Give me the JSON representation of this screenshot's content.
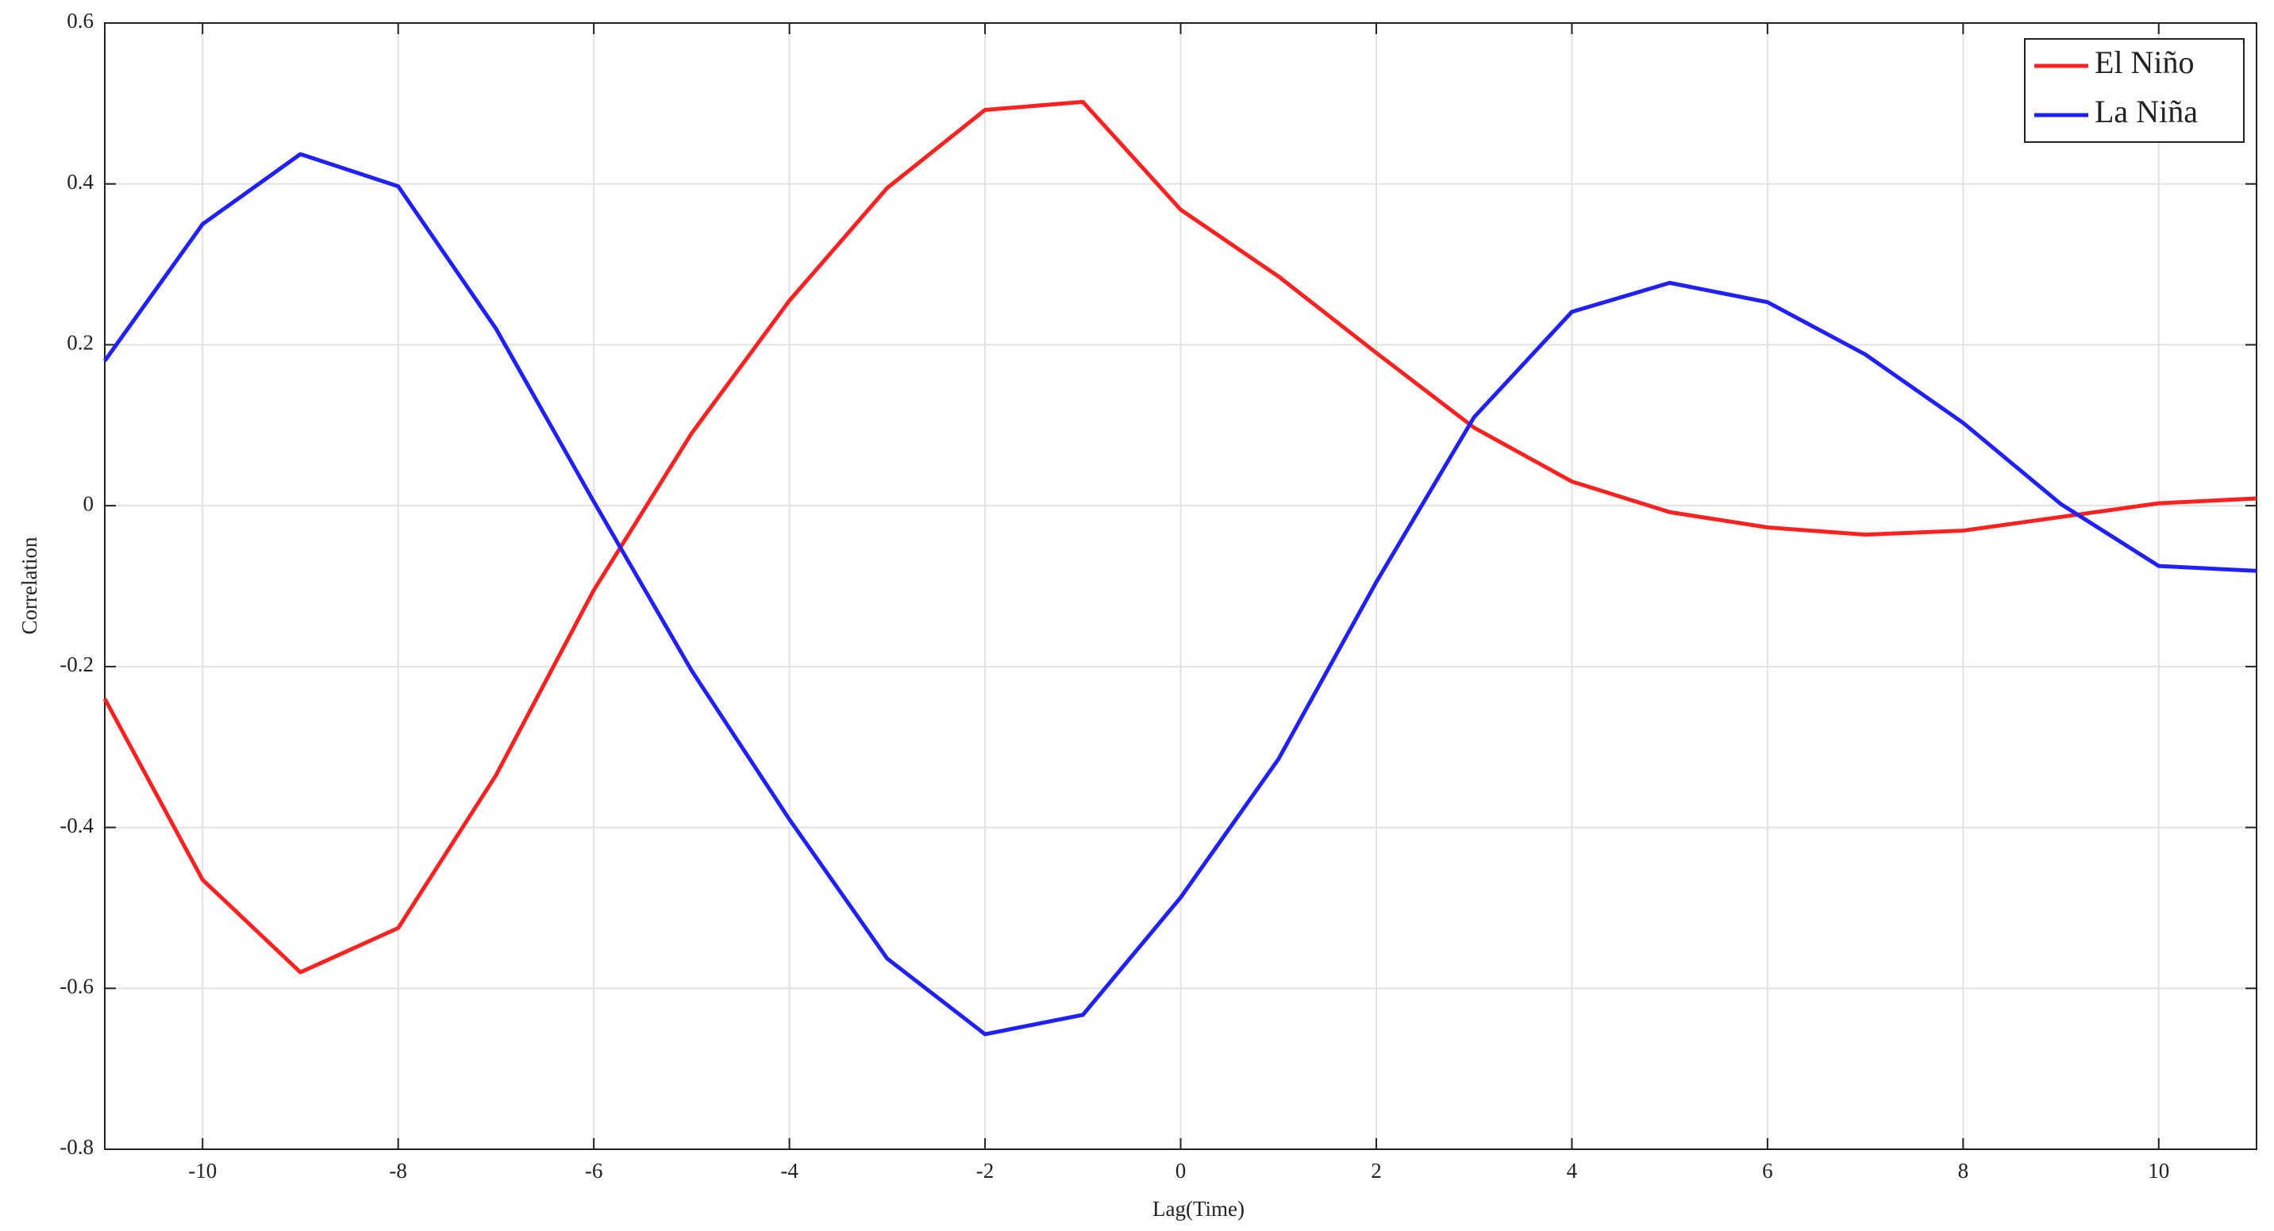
{
  "chart_data": {
    "type": "line",
    "x_label": "Lag(Time)",
    "y_label": "Correlation",
    "x": [
      -11,
      -10,
      -9,
      -8,
      -7,
      -6,
      -5,
      -4,
      -3,
      -2,
      -1,
      0,
      1,
      2,
      3,
      4,
      5,
      6,
      7,
      8,
      9,
      10,
      11
    ],
    "series": [
      {
        "name": "El Niño",
        "color": "#ff2020",
        "values": [
          -0.24,
          -0.465,
          -0.58,
          -0.525,
          -0.335,
          -0.105,
          0.09,
          0.255,
          0.395,
          0.492,
          0.502,
          0.368,
          0.285,
          0.19,
          0.097,
          0.03,
          -0.008,
          -0.027,
          -0.036,
          -0.031,
          -0.014,
          0.003,
          0.009
        ]
      },
      {
        "name": "La Niña",
        "color": "#2020ff",
        "values": [
          0.18,
          0.35,
          0.437,
          0.397,
          0.22,
          0.005,
          -0.205,
          -0.39,
          -0.563,
          -0.657,
          -0.633,
          -0.487,
          -0.315,
          -0.095,
          0.11,
          0.241,
          0.277,
          0.253,
          0.188,
          0.103,
          0.002,
          -0.075,
          -0.081
        ]
      }
    ],
    "xlim": [
      -11,
      11
    ],
    "xticks": [
      -10,
      -8,
      -6,
      -4,
      -2,
      0,
      2,
      4,
      6,
      8,
      10
    ],
    "ylim": [
      -0.8,
      0.6
    ],
    "yticks": [
      -0.8,
      -0.6,
      -0.4,
      -0.2,
      0,
      0.2,
      0.4,
      0.6
    ],
    "grid": true,
    "legend": "upper right"
  }
}
